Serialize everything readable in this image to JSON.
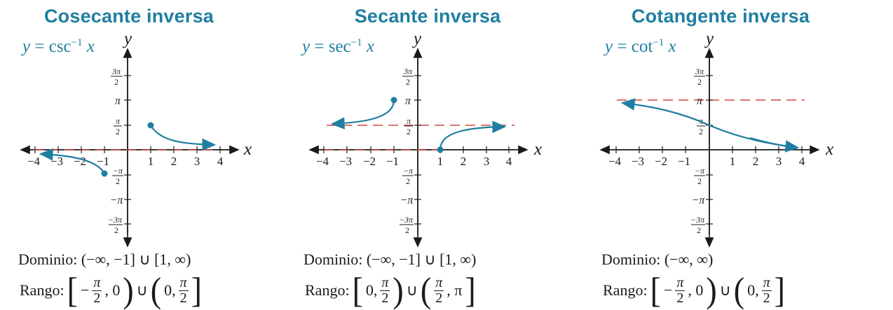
{
  "colors": {
    "title": "#1f7fa0",
    "curve": "#1f7fa0",
    "asymptote": "#d64541",
    "axis": "#1a1a1a"
  },
  "panels": [
    {
      "title": "Cosecante inversa",
      "function": {
        "y": "y",
        "eq": "=",
        "name": "csc",
        "sup": "−1",
        "x": "x"
      },
      "axis_labels": {
        "x": "x",
        "y": "y"
      },
      "x_ticks": [
        "−4",
        "−3",
        "−2",
        "−1",
        "1",
        "2",
        "3",
        "4"
      ],
      "y_ticks": {
        "3pi2_num": "3π",
        "3pi2_den": "2",
        "pi": "π",
        "pi2_num": "π",
        "pi2_den": "2",
        "npi2_num": "−π",
        "npi2_den": "2",
        "npi": "−π",
        "n3pi2_num": "−3π",
        "n3pi2_den": "2"
      },
      "domain_text": "Dominio: (−∞, −1] ∪ [1, ∞)",
      "range": {
        "label": "Rango:",
        "lb1": "[",
        "p1": "−",
        "f1_num": "π",
        "f1_den": "2",
        "t1": ", 0",
        "rb1": ")",
        "union": "∪",
        "lb2": "(",
        "t2": "0, ",
        "f2_num": "π",
        "f2_den": "2",
        "p2": "",
        "rb2": "]"
      }
    },
    {
      "title": "Secante inversa",
      "function": {
        "y": "y",
        "eq": "=",
        "name": "sec",
        "sup": "−1",
        "x": "x"
      },
      "axis_labels": {
        "x": "x",
        "y": "y"
      },
      "x_ticks": [
        "−4",
        "−3",
        "−2",
        "−1",
        "1",
        "2",
        "3",
        "4"
      ],
      "y_ticks": {
        "3pi2_num": "3π",
        "3pi2_den": "2",
        "pi": "π",
        "pi2_num": "π",
        "pi2_den": "2",
        "npi2_num": "−π",
        "npi2_den": "2",
        "npi": "−π",
        "n3pi2_num": "−3π",
        "n3pi2_den": "2"
      },
      "domain_text": "Dominio: (−∞, −1] ∪ [1, ∞)",
      "range": {
        "label": "Rango:",
        "lb1": "[",
        "p1": "0, ",
        "f1_num": "π",
        "f1_den": "2",
        "t1": "",
        "rb1": ")",
        "union": "∪",
        "lb2": "(",
        "t2": "",
        "f2_num": "π",
        "f2_den": "2",
        "p2": ", π",
        "rb2": "]"
      }
    },
    {
      "title": "Cotangente inversa",
      "function": {
        "y": "y",
        "eq": "=",
        "name": "cot",
        "sup": "−1",
        "x": "x"
      },
      "axis_labels": {
        "x": "x",
        "y": "y"
      },
      "x_ticks": [
        "−4",
        "−3",
        "−2",
        "−1",
        "1",
        "2",
        "3",
        "4"
      ],
      "y_ticks": {
        "3pi2_num": "3π",
        "3pi2_den": "2",
        "pi": "π",
        "pi2_num": "π",
        "pi2_den": "2",
        "npi2_num": "−π",
        "npi2_den": "2",
        "npi": "−π",
        "n3pi2_num": "−3π",
        "n3pi2_den": "2"
      },
      "domain_text": "Dominio: (−∞, ∞)",
      "range": {
        "label": "Rango:",
        "lb1": "[",
        "p1": "−",
        "f1_num": "π",
        "f1_den": "2",
        "t1": ", 0",
        "rb1": ")",
        "union": "∪",
        "lb2": "(",
        "t2": "0, ",
        "f2_num": "π",
        "f2_den": "2",
        "p2": "",
        "rb2": "]"
      }
    }
  ]
}
